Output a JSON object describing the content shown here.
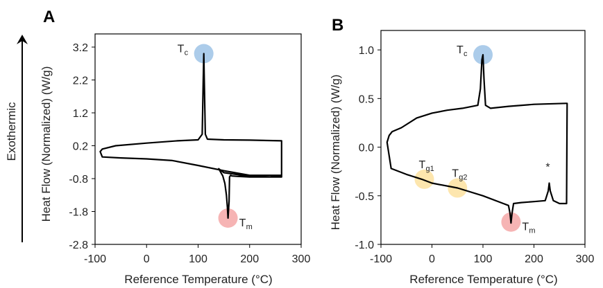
{
  "side_label": "Exothermic",
  "chart_data": [
    {
      "type": "line",
      "panel_label": "A",
      "xlabel": "Reference Temperature (°C)",
      "ylabel": "Heat Flow (Normalized) (W/g)",
      "xlim": [
        -100,
        300
      ],
      "ylim": [
        -2.8,
        3.6
      ],
      "x_ticks": [
        "-100",
        "0",
        "100",
        "200",
        "300"
      ],
      "y_ticks": [
        "-2.8",
        "-1.8",
        "-0.8",
        "0.2",
        "1.2",
        "2.2",
        "3.2"
      ],
      "x_tick_values": [
        -100,
        0,
        100,
        200,
        300
      ],
      "y_tick_values": [
        -2.8,
        -1.8,
        -0.8,
        0.2,
        1.2,
        2.2,
        3.2
      ],
      "grid": false,
      "series": [
        {
          "x": [
            -90,
            -86,
            -60,
            0,
            60,
            100,
            108,
            110,
            111,
            112,
            114,
            118,
            150,
            200,
            262,
            262,
            240,
            200,
            150,
            140,
            148,
            152,
            155,
            157,
            158,
            160,
            161,
            163,
            166,
            175,
            200,
            262,
            262,
            200,
            150,
            100,
            50,
            0,
            -50,
            -86,
            -90
          ],
          "y": [
            0.02,
            0.1,
            0.2,
            0.28,
            0.35,
            0.38,
            0.55,
            2.2,
            3.0,
            2.2,
            0.55,
            0.4,
            0.38,
            0.37,
            0.35,
            -0.7,
            -0.75,
            -0.73,
            -0.62,
            -0.5,
            -0.72,
            -0.95,
            -1.3,
            -1.7,
            -2.0,
            -1.5,
            -0.75,
            -0.7,
            -0.72,
            -0.73,
            -0.75,
            -0.75,
            -0.7,
            -0.7,
            -0.56,
            -0.4,
            -0.25,
            -0.2,
            -0.17,
            -0.14,
            0.02
          ]
        }
      ],
      "annotations": [
        {
          "text": "T",
          "sub": "c",
          "x": 111,
          "y": 3.0,
          "marker_color": "#9dc3e6"
        },
        {
          "text": "T",
          "sub": "m",
          "x": 158,
          "y": -2.0,
          "marker_color": "#f4a7a7"
        }
      ]
    },
    {
      "type": "line",
      "panel_label": "B",
      "xlabel": "Reference Temperature (°C)",
      "ylabel": "Heat Flow (Normalized) (W/g)",
      "xlim": [
        -100,
        300
      ],
      "ylim": [
        -1.0,
        1.2
      ],
      "x_ticks": [
        "-100",
        "0",
        "100",
        "200",
        "300"
      ],
      "y_ticks": [
        "-1.0",
        "-0.5",
        "0.0",
        "0.5",
        "1.0"
      ],
      "x_tick_values": [
        -100,
        0,
        100,
        200,
        300
      ],
      "y_tick_values": [
        -1.0,
        -0.5,
        0.0,
        0.5,
        1.0
      ],
      "grid": false,
      "series": [
        {
          "x": [
            -88,
            -84,
            -78,
            -60,
            -30,
            0,
            30,
            60,
            90,
            95,
            98,
            100,
            102,
            105,
            115,
            150,
            200,
            262,
            265,
            264,
            250,
            238,
            232,
            230,
            228,
            222,
            200,
            175,
            160,
            157,
            155,
            153,
            150,
            140,
            100,
            50,
            0,
            -20,
            -50,
            -80,
            -88
          ],
          "y": [
            0.05,
            0.12,
            0.16,
            0.2,
            0.3,
            0.35,
            0.38,
            0.4,
            0.43,
            0.6,
            0.9,
            0.95,
            0.7,
            0.43,
            0.4,
            0.42,
            0.44,
            0.45,
            0.45,
            -0.58,
            -0.58,
            -0.55,
            -0.45,
            -0.37,
            -0.45,
            -0.55,
            -0.56,
            -0.57,
            -0.58,
            -0.68,
            -0.78,
            -0.68,
            -0.6,
            -0.58,
            -0.5,
            -0.42,
            -0.37,
            -0.33,
            -0.28,
            -0.22,
            0.05
          ]
        }
      ],
      "annotations": [
        {
          "text": "T",
          "sub": "c",
          "x": 100,
          "y": 0.95,
          "marker_color": "#9dc3e6"
        },
        {
          "text": "T",
          "sub": "g1",
          "x": -15,
          "y": -0.33,
          "marker_color": "#fde2a0"
        },
        {
          "text": "T",
          "sub": "g2",
          "x": 50,
          "y": -0.42,
          "marker_color": "#fde2a0"
        },
        {
          "text": "T",
          "sub": "m",
          "x": 155,
          "y": -0.77,
          "marker_color": "#f4a7a7"
        },
        {
          "text": "*",
          "sub": "",
          "x": 230,
          "y": -0.37,
          "marker_color": ""
        }
      ]
    }
  ]
}
